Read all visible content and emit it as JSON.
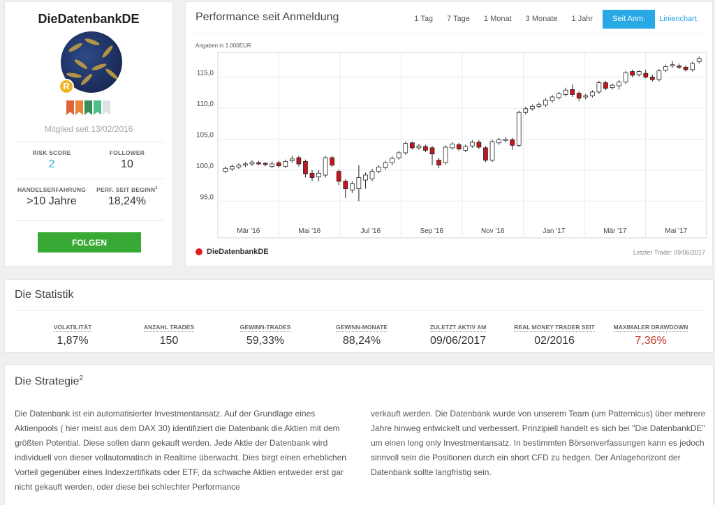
{
  "profile": {
    "name": "DieDatenbankDE",
    "badge": "R",
    "member_since": "Mitglied seit 13/02/2016",
    "flag_colors": [
      "#e0633a",
      "#e8833a",
      "#3a8e5a",
      "#4cbf8a",
      "#dfe2e4"
    ],
    "risk_label": "RISK SCORE",
    "risk_value": "2",
    "follower_label": "FOLLOWER",
    "follower_value": "10",
    "experience_label": "HANDELSERFAHRUNG",
    "experience_value": ">10 Jahre",
    "perf_label": "PERF. SEIT BEGINN",
    "perf_sup": "1",
    "perf_value": "18,24%",
    "follow_button": "FOLGEN"
  },
  "performance": {
    "title": "Performance seit Anmeldung",
    "ranges": [
      "1 Tag",
      "7 Tage",
      "1 Monat",
      "3 Monate",
      "1 Jahr"
    ],
    "active_range": "Seit Anm.",
    "chart_type_link": "Linienchart",
    "unit_note": "Angaben in 1.000EUR",
    "legend": "DieDatenbankDE",
    "last_trade": "Letzter Trade: 09/06/2017"
  },
  "chart_data": {
    "type": "candlestick",
    "x_labels": [
      "Mär '16",
      "Mai '16",
      "Jul '16",
      "Sep '16",
      "Nov '16",
      "Jan '17",
      "Mär '17",
      "Mai '17"
    ],
    "y_ticks": [
      "95,0",
      "100,0",
      "105,0",
      "110,0",
      "115,0"
    ],
    "ylim": [
      92,
      119
    ],
    "up_color": "#ffffff",
    "down_color": "#c8141c",
    "candles": [
      [
        99.8,
        100.3,
        99.5,
        100.6
      ],
      [
        100.2,
        100.6,
        99.9,
        100.9
      ],
      [
        100.5,
        100.8,
        100.2,
        101.1
      ],
      [
        100.8,
        101.0,
        100.5,
        101.3
      ],
      [
        101.0,
        101.3,
        100.7,
        101.6
      ],
      [
        101.2,
        101.0,
        100.8,
        101.5
      ],
      [
        101.1,
        100.9,
        100.6,
        101.3
      ],
      [
        100.6,
        101.0,
        100.3,
        101.4
      ],
      [
        101.2,
        100.7,
        100.4,
        101.5
      ],
      [
        100.6,
        101.4,
        100.3,
        101.7
      ],
      [
        101.5,
        101.8,
        101.2,
        102.3
      ],
      [
        102.0,
        101.0,
        100.6,
        102.3
      ],
      [
        101.4,
        99.4,
        98.8,
        101.7
      ],
      [
        99.5,
        98.8,
        98.2,
        100.0
      ],
      [
        98.9,
        99.5,
        98.2,
        100.0
      ],
      [
        99.2,
        102.0,
        98.8,
        102.3
      ],
      [
        102.0,
        100.8,
        100.5,
        102.3
      ],
      [
        99.8,
        98.2,
        97.6,
        100.1
      ],
      [
        98.2,
        97.0,
        95.5,
        98.5
      ],
      [
        96.8,
        97.8,
        96.3,
        98.2
      ],
      [
        97.0,
        98.8,
        95.0,
        100.8
      ],
      [
        98.4,
        99.2,
        97.0,
        99.6
      ],
      [
        98.6,
        99.8,
        98.2,
        100.2
      ],
      [
        99.8,
        100.5,
        99.5,
        100.8
      ],
      [
        100.4,
        101.2,
        100.1,
        101.5
      ],
      [
        101.2,
        101.9,
        100.8,
        102.2
      ],
      [
        102.0,
        102.8,
        101.7,
        103.1
      ],
      [
        102.8,
        104.3,
        102.5,
        104.6
      ],
      [
        104.4,
        103.6,
        103.3,
        104.6
      ],
      [
        103.6,
        103.9,
        103.3,
        104.2
      ],
      [
        103.8,
        103.2,
        102.9,
        104.1
      ],
      [
        103.6,
        102.6,
        100.8,
        103.9
      ],
      [
        101.6,
        100.8,
        100.3,
        102.0
      ],
      [
        101.2,
        103.7,
        100.9,
        104.0
      ],
      [
        103.6,
        104.2,
        103.3,
        104.5
      ],
      [
        104.1,
        103.4,
        103.1,
        104.4
      ],
      [
        103.2,
        103.8,
        102.9,
        104.1
      ],
      [
        103.9,
        104.5,
        103.6,
        104.8
      ],
      [
        104.5,
        103.7,
        103.4,
        104.8
      ],
      [
        103.6,
        101.6,
        101.3,
        103.9
      ],
      [
        101.6,
        104.6,
        101.3,
        104.9
      ],
      [
        104.4,
        104.9,
        104.1,
        105.2
      ],
      [
        104.8,
        105.0,
        104.5,
        105.3
      ],
      [
        104.9,
        104.0,
        103.3,
        105.2
      ],
      [
        104.0,
        109.3,
        103.7,
        109.6
      ],
      [
        109.3,
        109.9,
        109.0,
        110.2
      ],
      [
        109.9,
        110.3,
        109.6,
        110.6
      ],
      [
        110.3,
        110.6,
        110.0,
        110.9
      ],
      [
        110.5,
        111.3,
        110.2,
        111.6
      ],
      [
        111.2,
        111.8,
        110.9,
        112.1
      ],
      [
        111.7,
        112.3,
        111.4,
        112.6
      ],
      [
        112.2,
        112.9,
        111.9,
        113.3
      ],
      [
        113.0,
        112.2,
        111.8,
        113.8
      ],
      [
        112.4,
        111.6,
        111.1,
        112.7
      ],
      [
        111.8,
        112.0,
        111.4,
        112.3
      ],
      [
        112.0,
        112.6,
        111.7,
        112.9
      ],
      [
        112.6,
        114.1,
        112.3,
        114.4
      ],
      [
        114.1,
        113.2,
        112.9,
        114.4
      ],
      [
        113.3,
        113.7,
        113.0,
        114.0
      ],
      [
        113.6,
        114.2,
        113.0,
        114.5
      ],
      [
        114.2,
        115.7,
        113.9,
        116.0
      ],
      [
        115.9,
        115.3,
        115.0,
        116.2
      ],
      [
        115.4,
        115.9,
        115.1,
        116.1
      ],
      [
        115.6,
        115.0,
        114.8,
        116.2
      ],
      [
        115.0,
        114.6,
        114.3,
        115.4
      ],
      [
        114.6,
        116.0,
        114.3,
        116.3
      ],
      [
        116.1,
        116.7,
        115.8,
        117.0
      ],
      [
        116.8,
        117.0,
        116.5,
        117.6
      ],
      [
        116.8,
        116.6,
        116.3,
        117.2
      ],
      [
        116.6,
        116.2,
        115.9,
        116.9
      ],
      [
        116.2,
        117.2,
        115.9,
        117.5
      ],
      [
        117.5,
        118.0,
        117.2,
        118.3
      ]
    ]
  },
  "statistik": {
    "title": "Die Statistik",
    "items": [
      {
        "label": "VOLATILITÄT",
        "value": "1,87%"
      },
      {
        "label": "ANZAHL TRADES",
        "value": "150"
      },
      {
        "label": "GEWINN-TRADES",
        "value": "59,33%"
      },
      {
        "label": "GEWINN-MONATE",
        "value": "88,24%"
      },
      {
        "label": "ZULETZT AKTIV AM",
        "value": "09/06/2017"
      },
      {
        "label": "REAL MONEY TRADER SEIT",
        "value": "02/2016"
      },
      {
        "label": "MAXIMALER DRAWDOWN",
        "value": "7,36%"
      }
    ]
  },
  "strategie": {
    "title": "Die Strategie",
    "title_sup": "2",
    "left_text": "Die Datenbank ist ein automatisierter Investmentansatz. Auf der Grundlage eines Aktienpools ( hier meist aus dem DAX 30) identifiziert die Datenbank die Aktien mit dem größten Potential. Diese sollen dann gekauft werden. Jede Aktie der Datenbank wird individuell von dieser vollautomatisch in Realtime überwacht. Dies birgt einen erheblichen Vorteil gegenüber eines Indexzertifikats oder ETF, da schwache Aktien entweder erst gar nicht gekauft werden, oder diese bei schlechter Performance",
    "right_text": "verkauft werden. Die Datenbank wurde von unserem Team (um Patternicus) über mehrere Jahre hinweg entwickelt und verbessert.  Prinzipiell handelt es sich bei \"Die DatenbankDE\" um einen long only Investmentansatz. In bestimmten Börsenverfassungen kann es jedoch sinnvoll sein die Positionen durch ein short CFD zu hedgen.   Der Anlagehorizont der Datenbank sollte langfristig sein."
  }
}
